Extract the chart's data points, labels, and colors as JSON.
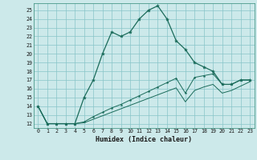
{
  "xlabel": "Humidex (Indice chaleur)",
  "x_ticks": [
    0,
    1,
    2,
    3,
    4,
    5,
    6,
    7,
    8,
    9,
    10,
    11,
    12,
    13,
    14,
    15,
    16,
    17,
    18,
    19,
    20,
    21,
    22,
    23
  ],
  "y_ticks": [
    12,
    13,
    14,
    15,
    16,
    17,
    18,
    19,
    20,
    21,
    22,
    23,
    24,
    25
  ],
  "xlim": [
    -0.5,
    23.5
  ],
  "ylim": [
    11.5,
    25.8
  ],
  "bg_color": "#cce9ea",
  "grid_color": "#88c4c8",
  "line_color": "#1a6b5a",
  "line1_x": [
    0,
    1,
    2,
    3,
    4,
    5,
    6,
    7,
    8,
    9,
    10,
    11,
    12,
    13,
    14,
    15,
    16,
    17,
    18,
    19,
    20,
    21,
    22,
    23
  ],
  "line1_y": [
    14,
    12,
    12,
    12,
    12,
    15,
    17,
    20,
    22.5,
    22,
    22.5,
    24,
    25,
    25.5,
    24,
    21.5,
    20.5,
    19,
    18.5,
    18,
    16.5,
    16.5,
    17,
    17
  ],
  "line2_x": [
    0,
    1,
    2,
    3,
    4,
    5,
    6,
    7,
    8,
    9,
    10,
    11,
    12,
    13,
    14,
    15,
    16,
    17,
    18,
    19,
    20,
    21,
    22,
    23
  ],
  "line2_y": [
    14,
    12,
    12,
    12,
    12,
    12.2,
    12.8,
    13.3,
    13.8,
    14.2,
    14.7,
    15.2,
    15.7,
    16.2,
    16.7,
    17.2,
    15.5,
    17.3,
    17.5,
    17.7,
    16.5,
    16.5,
    17.0,
    17.0
  ],
  "line3_x": [
    0,
    1,
    2,
    3,
    4,
    5,
    6,
    7,
    8,
    9,
    10,
    11,
    12,
    13,
    14,
    15,
    16,
    17,
    18,
    19,
    20,
    21,
    22,
    23
  ],
  "line3_y": [
    14,
    12,
    12,
    12,
    12,
    12.1,
    12.5,
    12.9,
    13.3,
    13.7,
    14.1,
    14.5,
    14.9,
    15.3,
    15.7,
    16.1,
    14.5,
    15.8,
    16.2,
    16.5,
    15.5,
    15.8,
    16.3,
    16.8
  ]
}
